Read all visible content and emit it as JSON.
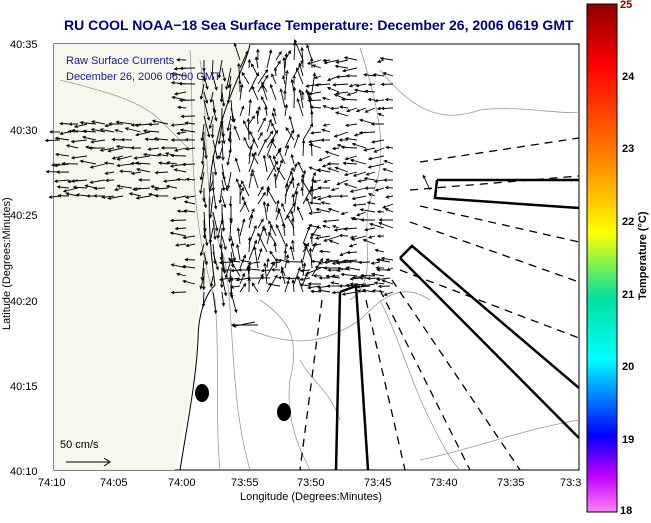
{
  "title": "RU COOL  NOAA−18  Sea Surface Temperature:  December 26, 2006 0619 GMT",
  "overlay_text": {
    "line1": "Raw Surface Currents",
    "line2": "December 26, 2006 06:00 GMT"
  },
  "axes": {
    "xlabel": "Longitude (Degrees:Minutes)",
    "ylabel": "Latitude (Degrees:Minutes)",
    "xticks": [
      "74:10",
      "74:05",
      "74:00",
      "73:55",
      "73:50",
      "73:45",
      "73:40",
      "73:35",
      "73:3"
    ],
    "yticks": [
      "40:35",
      "40:30",
      "40:25",
      "40:20",
      "40:15",
      "40:10"
    ]
  },
  "scale_label": "50 cm/s",
  "colorbar": {
    "label": "Temperature (°C)",
    "ticks": [
      "25",
      "24",
      "23",
      "22",
      "21",
      "20",
      "19",
      "18"
    ],
    "colors": [
      "#8b0000",
      "#ff0000",
      "#ff8000",
      "#ffff00",
      "#00e0a0",
      "#00ffff",
      "#0000ff",
      "#c000ff",
      "#ff80ff"
    ]
  },
  "colors": {
    "title": "#00007a",
    "overlay": "#1a1a8c",
    "land": "#fafaf2",
    "coastline": "#000000",
    "contour": "#9a9a9a"
  }
}
